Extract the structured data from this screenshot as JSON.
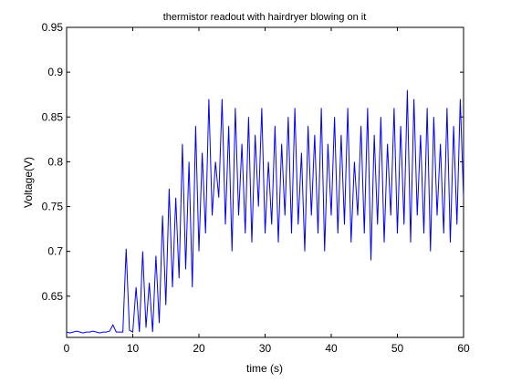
{
  "chart_data": {
    "type": "line",
    "title": "thermistor readout with hairdryer blowing on it",
    "x_label": "time (s)",
    "y_label": "Voltage(V)",
    "x": [
      0,
      0.5,
      1,
      1.5,
      2,
      2.5,
      3,
      3.5,
      4,
      4.5,
      5,
      5.5,
      6,
      6.5,
      7,
      7.5,
      8,
      8.5,
      9,
      9.5,
      10,
      10.5,
      11,
      11.5,
      12,
      12.5,
      13,
      13.5,
      14,
      14.5,
      15,
      15.5,
      16,
      16.5,
      17,
      17.5,
      18,
      18.5,
      19,
      19.5,
      20,
      20.5,
      21,
      21.5,
      22,
      22.5,
      23,
      23.5,
      24,
      24.5,
      25,
      25.5,
      26,
      26.5,
      27,
      27.5,
      28,
      28.5,
      29,
      29.5,
      30,
      30.5,
      31,
      31.5,
      32,
      32.5,
      33,
      33.5,
      34,
      34.5,
      35,
      35.5,
      36,
      36.5,
      37,
      37.5,
      38,
      38.5,
      39,
      39.5,
      40,
      40.5,
      41,
      41.5,
      42,
      42.5,
      43,
      43.5,
      44,
      44.5,
      45,
      45.5,
      46,
      46.5,
      47,
      47.5,
      48,
      48.5,
      49,
      49.5,
      50,
      50.5,
      51,
      51.5,
      52,
      52.5,
      53,
      53.5,
      54,
      54.5,
      55,
      55.5,
      56,
      56.5,
      57,
      57.5,
      58,
      58.5,
      59,
      59.5,
      60
    ],
    "series": [
      {
        "color": "#0000ff",
        "values": [
          0.61,
          0.609,
          0.61,
          0.611,
          0.61,
          0.609,
          0.61,
          0.61,
          0.611,
          0.61,
          0.609,
          0.61,
          0.61,
          0.611,
          0.618,
          0.61,
          0.61,
          0.61,
          0.703,
          0.612,
          0.61,
          0.66,
          0.61,
          0.7,
          0.615,
          0.665,
          0.61,
          0.695,
          0.62,
          0.74,
          0.64,
          0.77,
          0.66,
          0.76,
          0.67,
          0.82,
          0.68,
          0.8,
          0.66,
          0.84,
          0.7,
          0.81,
          0.72,
          0.87,
          0.74,
          0.8,
          0.76,
          0.87,
          0.73,
          0.84,
          0.7,
          0.86,
          0.74,
          0.82,
          0.72,
          0.85,
          0.71,
          0.83,
          0.75,
          0.86,
          0.72,
          0.8,
          0.73,
          0.84,
          0.71,
          0.82,
          0.74,
          0.85,
          0.72,
          0.86,
          0.73,
          0.81,
          0.7,
          0.84,
          0.74,
          0.83,
          0.72,
          0.86,
          0.7,
          0.82,
          0.74,
          0.85,
          0.72,
          0.83,
          0.73,
          0.86,
          0.71,
          0.8,
          0.74,
          0.84,
          0.72,
          0.86,
          0.69,
          0.83,
          0.73,
          0.85,
          0.71,
          0.82,
          0.74,
          0.86,
          0.72,
          0.84,
          0.73,
          0.88,
          0.71,
          0.87,
          0.74,
          0.83,
          0.72,
          0.86,
          0.7,
          0.85,
          0.74,
          0.82,
          0.72,
          0.86,
          0.71,
          0.84,
          0.73,
          0.87,
          0.76
        ]
      }
    ],
    "xlim": [
      0,
      60
    ],
    "xticks": [
      0,
      10,
      20,
      30,
      40,
      50,
      60
    ],
    "ylim": [
      0.604,
      0.95
    ],
    "yticks": [
      0.65,
      0.7,
      0.75,
      0.8,
      0.85,
      0.9,
      0.95
    ]
  }
}
